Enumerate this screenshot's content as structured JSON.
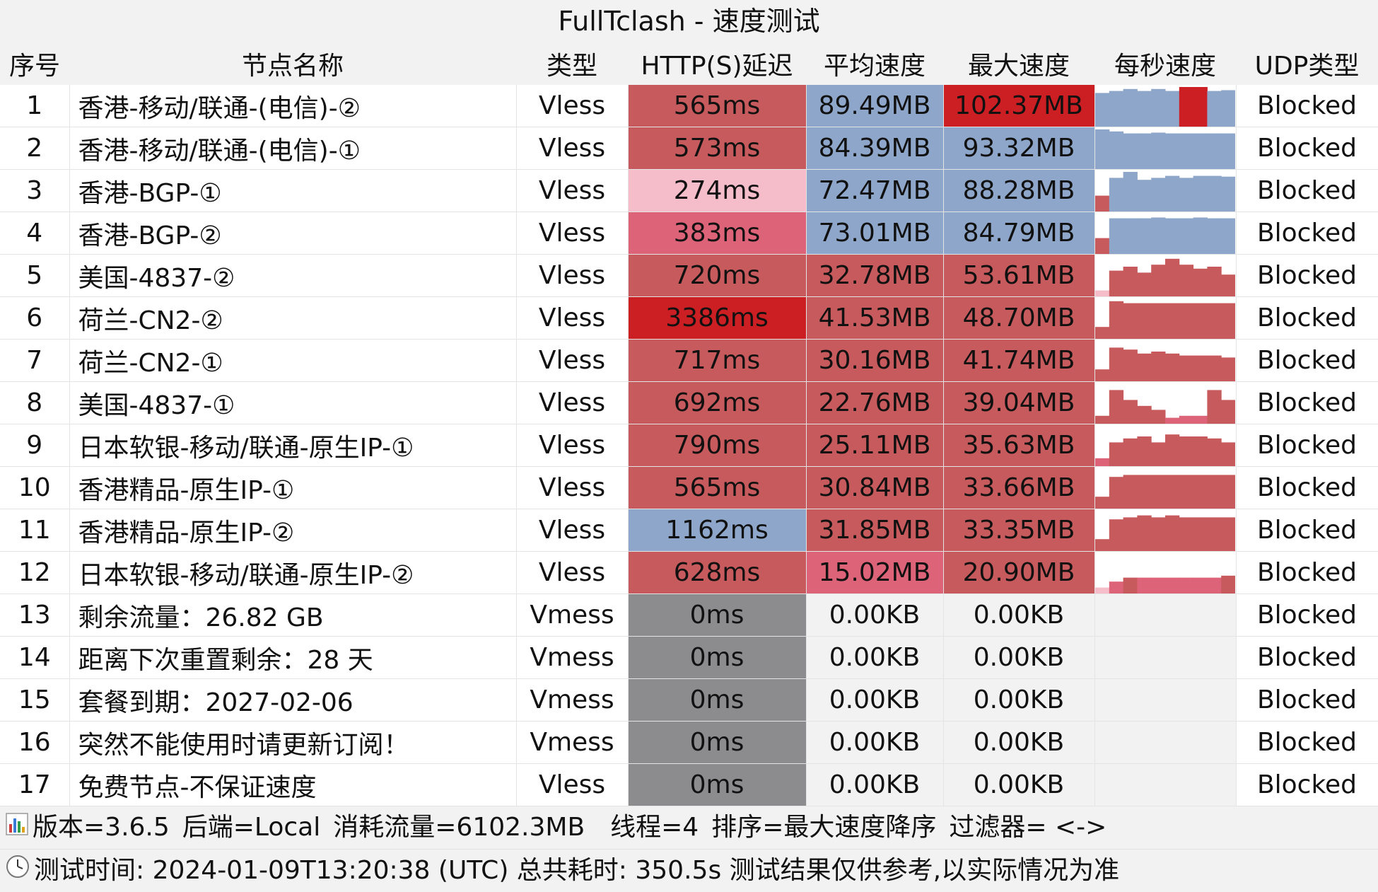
{
  "window": {
    "title": "FullTclash - 速度测试"
  },
  "headers": [
    "序号",
    "节点名称",
    "类型",
    "HTTP(S)延迟",
    "平均速度",
    "最大速度",
    "每秒速度",
    "UDP类型"
  ],
  "colors": {
    "red_strong": "#cc1f24",
    "red": "#c75a5c",
    "pink": "#dd6378",
    "light_pink": "#f5bdc9",
    "blue": "#8ea6c9",
    "gray": "#8c8b8e",
    "empty": "#f2f2f2"
  },
  "rows": [
    {
      "idx": "1",
      "name": "香港-移动/联通-(电信)-②",
      "type": "Vless",
      "delay": "565ms",
      "delay_color": "red",
      "avg": "89.49MB",
      "avg_color": "blue",
      "max": "102.37MB",
      "max_color": "red_strong",
      "udp": "Blocked",
      "per_second": [
        {
          "v": 0.85,
          "c": "blue"
        },
        {
          "v": 0.9,
          "c": "blue"
        },
        {
          "v": 0.95,
          "c": "blue"
        },
        {
          "v": 0.9,
          "c": "blue"
        },
        {
          "v": 0.95,
          "c": "blue"
        },
        {
          "v": 0.9,
          "c": "blue"
        },
        {
          "v": 1.0,
          "c": "red_strong"
        },
        {
          "v": 1.0,
          "c": "red_strong"
        },
        {
          "v": 0.9,
          "c": "blue"
        },
        {
          "v": 0.92,
          "c": "blue"
        }
      ]
    },
    {
      "idx": "2",
      "name": "香港-移动/联通-(电信)-①",
      "type": "Vless",
      "delay": "573ms",
      "delay_color": "red",
      "avg": "84.39MB",
      "avg_color": "blue",
      "max": "93.32MB",
      "max_color": "blue",
      "udp": "Blocked",
      "per_second": [
        {
          "v": 1.0,
          "c": "blue"
        },
        {
          "v": 0.95,
          "c": "blue"
        },
        {
          "v": 0.9,
          "c": "blue"
        },
        {
          "v": 0.9,
          "c": "blue"
        },
        {
          "v": 0.92,
          "c": "blue"
        },
        {
          "v": 0.9,
          "c": "blue"
        },
        {
          "v": 0.9,
          "c": "blue"
        },
        {
          "v": 0.9,
          "c": "blue"
        },
        {
          "v": 0.9,
          "c": "blue"
        },
        {
          "v": 0.9,
          "c": "blue"
        }
      ]
    },
    {
      "idx": "3",
      "name": "香港-BGP-①",
      "type": "Vless",
      "delay": "274ms",
      "delay_color": "light_pink",
      "avg": "72.47MB",
      "avg_color": "blue",
      "max": "88.28MB",
      "max_color": "blue",
      "udp": "Blocked",
      "per_second": [
        {
          "v": 0.4,
          "c": "red"
        },
        {
          "v": 0.85,
          "c": "blue"
        },
        {
          "v": 1.0,
          "c": "blue"
        },
        {
          "v": 0.8,
          "c": "blue"
        },
        {
          "v": 0.85,
          "c": "blue"
        },
        {
          "v": 0.9,
          "c": "blue"
        },
        {
          "v": 0.85,
          "c": "blue"
        },
        {
          "v": 0.9,
          "c": "blue"
        },
        {
          "v": 0.9,
          "c": "blue"
        },
        {
          "v": 0.88,
          "c": "blue"
        }
      ]
    },
    {
      "idx": "4",
      "name": "香港-BGP-②",
      "type": "Vless",
      "delay": "383ms",
      "delay_color": "pink",
      "avg": "73.01MB",
      "avg_color": "blue",
      "max": "84.79MB",
      "max_color": "blue",
      "udp": "Blocked",
      "per_second": [
        {
          "v": 0.4,
          "c": "red"
        },
        {
          "v": 0.9,
          "c": "blue"
        },
        {
          "v": 0.9,
          "c": "blue"
        },
        {
          "v": 0.9,
          "c": "blue"
        },
        {
          "v": 0.92,
          "c": "blue"
        },
        {
          "v": 0.9,
          "c": "blue"
        },
        {
          "v": 0.9,
          "c": "blue"
        },
        {
          "v": 0.92,
          "c": "blue"
        },
        {
          "v": 0.9,
          "c": "blue"
        },
        {
          "v": 0.9,
          "c": "blue"
        }
      ]
    },
    {
      "idx": "5",
      "name": "美国-4837-②",
      "type": "Vless",
      "delay": "720ms",
      "delay_color": "red",
      "avg": "32.78MB",
      "avg_color": "red",
      "max": "53.61MB",
      "max_color": "red",
      "udp": "Blocked",
      "per_second": [
        {
          "v": 0.15,
          "c": "light_pink"
        },
        {
          "v": 0.65,
          "c": "red"
        },
        {
          "v": 0.75,
          "c": "red"
        },
        {
          "v": 0.6,
          "c": "red"
        },
        {
          "v": 0.8,
          "c": "red"
        },
        {
          "v": 0.95,
          "c": "red"
        },
        {
          "v": 0.8,
          "c": "red"
        },
        {
          "v": 0.7,
          "c": "red"
        },
        {
          "v": 0.75,
          "c": "red"
        },
        {
          "v": 0.55,
          "c": "red"
        }
      ]
    },
    {
      "idx": "6",
      "name": "荷兰-CN2-②",
      "type": "Vless",
      "delay": "3386ms",
      "delay_color": "red_strong",
      "avg": "41.53MB",
      "avg_color": "red",
      "max": "48.70MB",
      "max_color": "red",
      "udp": "Blocked",
      "per_second": [
        {
          "v": 0.3,
          "c": "red"
        },
        {
          "v": 0.95,
          "c": "red"
        },
        {
          "v": 0.9,
          "c": "red"
        },
        {
          "v": 0.9,
          "c": "red"
        },
        {
          "v": 0.9,
          "c": "red"
        },
        {
          "v": 0.9,
          "c": "red"
        },
        {
          "v": 0.9,
          "c": "red"
        },
        {
          "v": 0.9,
          "c": "red"
        },
        {
          "v": 0.9,
          "c": "red"
        },
        {
          "v": 0.9,
          "c": "red"
        }
      ]
    },
    {
      "idx": "7",
      "name": "荷兰-CN2-①",
      "type": "Vless",
      "delay": "717ms",
      "delay_color": "red",
      "avg": "30.16MB",
      "avg_color": "red",
      "max": "41.74MB",
      "max_color": "red",
      "udp": "Blocked",
      "per_second": [
        {
          "v": 0.3,
          "c": "red"
        },
        {
          "v": 0.85,
          "c": "red"
        },
        {
          "v": 0.8,
          "c": "red"
        },
        {
          "v": 0.7,
          "c": "red"
        },
        {
          "v": 0.75,
          "c": "red"
        },
        {
          "v": 0.7,
          "c": "red"
        },
        {
          "v": 0.65,
          "c": "red"
        },
        {
          "v": 0.65,
          "c": "red"
        },
        {
          "v": 0.65,
          "c": "red"
        },
        {
          "v": 0.6,
          "c": "red"
        }
      ]
    },
    {
      "idx": "8",
      "name": "美国-4837-①",
      "type": "Vless",
      "delay": "692ms",
      "delay_color": "red",
      "avg": "22.76MB",
      "avg_color": "red",
      "max": "39.04MB",
      "max_color": "red",
      "udp": "Blocked",
      "per_second": [
        {
          "v": 0.2,
          "c": "red"
        },
        {
          "v": 0.85,
          "c": "red"
        },
        {
          "v": 0.6,
          "c": "red"
        },
        {
          "v": 0.45,
          "c": "red"
        },
        {
          "v": 0.35,
          "c": "red"
        },
        {
          "v": 0.15,
          "c": "pink"
        },
        {
          "v": 0.2,
          "c": "pink"
        },
        {
          "v": 0.2,
          "c": "pink"
        },
        {
          "v": 0.85,
          "c": "red"
        },
        {
          "v": 0.6,
          "c": "red"
        }
      ]
    },
    {
      "idx": "9",
      "name": "日本软银-移动/联通-原生IP-①",
      "type": "Vless",
      "delay": "790ms",
      "delay_color": "red",
      "avg": "25.11MB",
      "avg_color": "red",
      "max": "35.63MB",
      "max_color": "red",
      "udp": "Blocked",
      "per_second": [
        {
          "v": 0.2,
          "c": "pink"
        },
        {
          "v": 0.6,
          "c": "red"
        },
        {
          "v": 0.7,
          "c": "red"
        },
        {
          "v": 0.75,
          "c": "red"
        },
        {
          "v": 0.6,
          "c": "red"
        },
        {
          "v": 0.8,
          "c": "red"
        },
        {
          "v": 0.75,
          "c": "red"
        },
        {
          "v": 0.75,
          "c": "red"
        },
        {
          "v": 0.7,
          "c": "red"
        },
        {
          "v": 0.6,
          "c": "red"
        }
      ]
    },
    {
      "idx": "10",
      "name": "香港精品-原生IP-①",
      "type": "Vless",
      "delay": "565ms",
      "delay_color": "red",
      "avg": "30.84MB",
      "avg_color": "red",
      "max": "33.66MB",
      "max_color": "red",
      "udp": "Blocked",
      "per_second": [
        {
          "v": 0.3,
          "c": "red"
        },
        {
          "v": 0.8,
          "c": "red"
        },
        {
          "v": 0.85,
          "c": "red"
        },
        {
          "v": 0.85,
          "c": "red"
        },
        {
          "v": 0.85,
          "c": "red"
        },
        {
          "v": 0.85,
          "c": "red"
        },
        {
          "v": 0.85,
          "c": "red"
        },
        {
          "v": 0.85,
          "c": "red"
        },
        {
          "v": 0.85,
          "c": "red"
        },
        {
          "v": 0.85,
          "c": "red"
        }
      ]
    },
    {
      "idx": "11",
      "name": "香港精品-原生IP-②",
      "type": "Vless",
      "delay": "1162ms",
      "delay_color": "blue",
      "avg": "31.85MB",
      "avg_color": "red",
      "max": "33.35MB",
      "max_color": "red",
      "udp": "Blocked",
      "per_second": [
        {
          "v": 0.3,
          "c": "red"
        },
        {
          "v": 0.8,
          "c": "red"
        },
        {
          "v": 0.85,
          "c": "red"
        },
        {
          "v": 0.9,
          "c": "red"
        },
        {
          "v": 0.85,
          "c": "red"
        },
        {
          "v": 0.9,
          "c": "red"
        },
        {
          "v": 0.85,
          "c": "red"
        },
        {
          "v": 0.85,
          "c": "red"
        },
        {
          "v": 0.85,
          "c": "red"
        },
        {
          "v": 0.85,
          "c": "red"
        }
      ]
    },
    {
      "idx": "12",
      "name": "日本软银-移动/联通-原生IP-②",
      "type": "Vless",
      "delay": "628ms",
      "delay_color": "red",
      "avg": "15.02MB",
      "avg_color": "pink",
      "max": "20.90MB",
      "max_color": "red",
      "udp": "Blocked",
      "per_second": [
        {
          "v": 0.15,
          "c": "light_pink"
        },
        {
          "v": 0.3,
          "c": "pink"
        },
        {
          "v": 0.4,
          "c": "red"
        },
        {
          "v": 0.4,
          "c": "pink"
        },
        {
          "v": 0.4,
          "c": "pink"
        },
        {
          "v": 0.4,
          "c": "pink"
        },
        {
          "v": 0.4,
          "c": "pink"
        },
        {
          "v": 0.4,
          "c": "pink"
        },
        {
          "v": 0.4,
          "c": "pink"
        },
        {
          "v": 0.45,
          "c": "red"
        }
      ]
    },
    {
      "idx": "13",
      "name": "剩余流量：26.82 GB",
      "type": "Vmess",
      "delay": "0ms",
      "delay_color": "gray",
      "avg": "0.00KB",
      "avg_color": "empty",
      "max": "0.00KB",
      "max_color": "empty",
      "udp": "Blocked",
      "per_second": []
    },
    {
      "idx": "14",
      "name": "距离下次重置剩余：28 天",
      "type": "Vmess",
      "delay": "0ms",
      "delay_color": "gray",
      "avg": "0.00KB",
      "avg_color": "empty",
      "max": "0.00KB",
      "max_color": "empty",
      "udp": "Blocked",
      "per_second": []
    },
    {
      "idx": "15",
      "name": "套餐到期：2027-02-06",
      "type": "Vmess",
      "delay": "0ms",
      "delay_color": "gray",
      "avg": "0.00KB",
      "avg_color": "empty",
      "max": "0.00KB",
      "max_color": "empty",
      "udp": "Blocked",
      "per_second": []
    },
    {
      "idx": "16",
      "name": "突然不能使用时请更新订阅！",
      "type": "Vmess",
      "delay": "0ms",
      "delay_color": "gray",
      "avg": "0.00KB",
      "avg_color": "empty",
      "max": "0.00KB",
      "max_color": "empty",
      "udp": "Blocked",
      "per_second": []
    },
    {
      "idx": "17",
      "name": "免费节点-不保证速度",
      "type": "Vless",
      "delay": "0ms",
      "delay_color": "gray",
      "avg": "0.00KB",
      "avg_color": "empty",
      "max": "0.00KB",
      "max_color": "empty",
      "udp": "Blocked",
      "per_second": []
    }
  ],
  "footer": {
    "line1_icon": "bar-chart-icon",
    "version": "版本=3.6.5",
    "backend": "后端=Local",
    "traffic": "消耗流量=6102.3MB",
    "threads": "线程=4",
    "sort": "排序=最大速度降序",
    "filter": "过滤器= <->",
    "line2_icon": "clock-icon",
    "test_time": "测试时间: 2024-01-09T13:20:38 (UTC) 总共耗时: 350.5s 测试结果仅供参考,以实际情况为准"
  }
}
